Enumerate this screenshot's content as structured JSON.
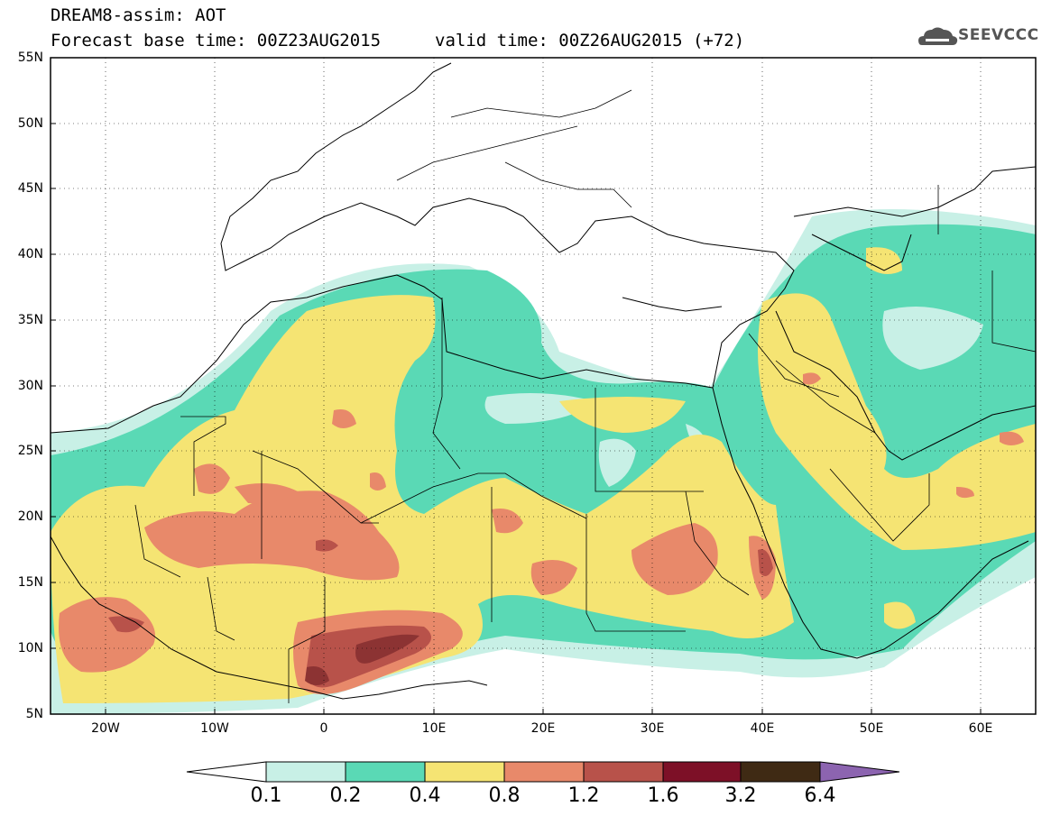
{
  "header": {
    "line1": "DREAM8-assim: AOT",
    "line2": "Forecast base time: 00Z23AUG2015",
    "valid": "valid time: 00Z26AUG2015 (+72)",
    "logo_text": "SEEVCCC"
  },
  "axes": {
    "lat_labels": [
      "55N",
      "50N",
      "45N",
      "40N",
      "35N",
      "30N",
      "25N",
      "20N",
      "15N",
      "10N",
      "5N"
    ],
    "lon_labels": [
      "20W",
      "10W",
      "0",
      "10E",
      "20E",
      "30E",
      "40E",
      "50E",
      "60E"
    ]
  },
  "colorbar": {
    "labels": [
      "0.1",
      "0.2",
      "0.4",
      "0.8",
      "1.2",
      "1.6",
      "3.2",
      "6.4"
    ],
    "colors": [
      "#c8f0e6",
      "#5ad9b5",
      "#f5e473",
      "#e8896a",
      "#b8524a",
      "#7d1027",
      "#3f2a14",
      "#8c64b0"
    ]
  },
  "map_colors": {
    "c1": "#c8f0e6",
    "c2": "#5ad9b5",
    "c3": "#f5e473",
    "c4": "#e8896a",
    "c5": "#b8524a",
    "c6": "#8c3333"
  }
}
